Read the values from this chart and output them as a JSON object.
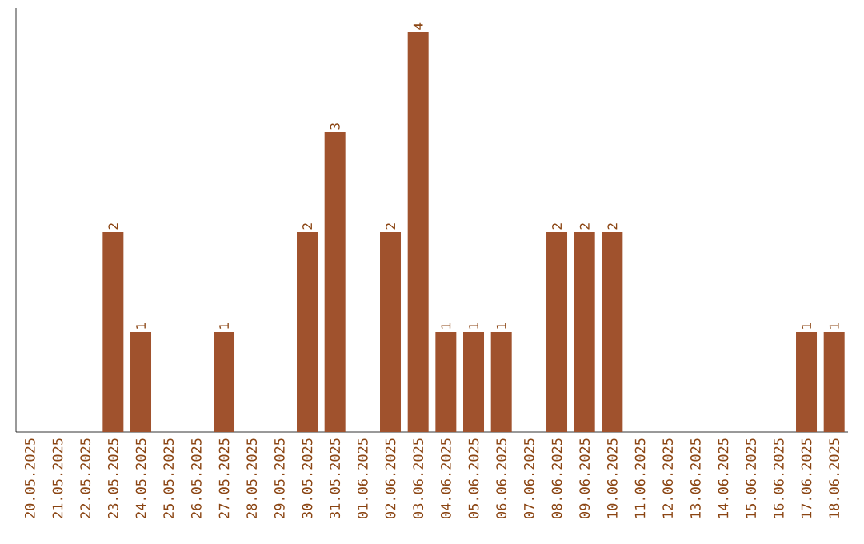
{
  "chart_data": {
    "type": "bar",
    "categories": [
      "20.05.2025",
      "21.05.2025",
      "22.05.2025",
      "23.05.2025",
      "24.05.2025",
      "25.05.2025",
      "26.05.2025",
      "27.05.2025",
      "28.05.2025",
      "29.05.2025",
      "30.05.2025",
      "31.05.2025",
      "01.06.2025",
      "02.06.2025",
      "03.06.2025",
      "04.06.2025",
      "05.06.2025",
      "06.06.2025",
      "07.06.2025",
      "08.06.2025",
      "09.06.2025",
      "10.06.2025",
      "11.06.2025",
      "12.06.2025",
      "13.06.2025",
      "14.06.2025",
      "15.06.2025",
      "16.06.2025",
      "17.06.2025",
      "18.06.2025"
    ],
    "values": [
      0,
      0,
      0,
      2,
      1,
      0,
      0,
      1,
      0,
      0,
      2,
      3,
      0,
      2,
      4,
      1,
      1,
      1,
      0,
      2,
      2,
      2,
      0,
      0,
      0,
      0,
      0,
      0,
      1,
      1
    ],
    "value_labels": [
      null,
      null,
      null,
      "2",
      "1",
      null,
      null,
      "1",
      null,
      null,
      "2",
      "3",
      null,
      "2",
      "4",
      "1",
      "1",
      "1",
      null,
      "2",
      "2",
      "2",
      null,
      null,
      null,
      null,
      null,
      null,
      "1",
      "1"
    ],
    "color": "#a0522d",
    "ylim": [
      0,
      4.24
    ]
  }
}
